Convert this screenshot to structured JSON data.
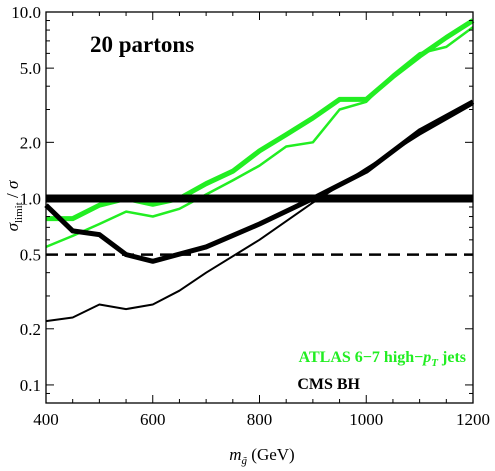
{
  "chart_data": {
    "type": "line",
    "title": "20 partons",
    "xlabel": "m_g̃ (GeV)",
    "ylabel": "σ_limit / σ",
    "xlim": [
      400,
      1200
    ],
    "ylim": [
      0.08,
      10.0
    ],
    "yscale": "log",
    "xticks": [
      400,
      600,
      800,
      1000,
      1200
    ],
    "xtick_labels": [
      "400",
      "600",
      "800",
      "1000",
      "1200"
    ],
    "yticks": [
      0.1,
      0.2,
      0.5,
      1.0,
      2.0,
      5.0,
      10.0
    ],
    "ytick_labels": [
      "0.1",
      "0.2",
      "0.5",
      "1.0",
      "2.0",
      "5.0",
      "10.0"
    ],
    "grid": false,
    "legend_entries": [
      {
        "label": "ATLAS 6−7 high−p_T jets",
        "color": "#22ee22"
      },
      {
        "label": "CMS BH",
        "color": "#000000"
      }
    ],
    "reference_lines": [
      {
        "y": 1.0,
        "style": "solid",
        "color": "#000000"
      },
      {
        "y": 0.5,
        "style": "dashed",
        "color": "#000000"
      }
    ],
    "series": [
      {
        "color": "#22ee22",
        "style": "thick",
        "x": [
          400,
          450,
          500,
          550,
          600,
          650,
          700,
          750,
          800,
          850,
          900,
          950,
          1000,
          1050,
          1100,
          1150,
          1200
        ],
        "y": [
          0.78,
          0.78,
          0.92,
          1.0,
          0.93,
          1.0,
          1.2,
          1.4,
          1.8,
          2.2,
          2.7,
          3.4,
          3.4,
          4.5,
          5.8,
          7.3,
          9.0
        ]
      },
      {
        "color": "#22ee22",
        "style": "thin",
        "x": [
          400,
          450,
          500,
          550,
          600,
          650,
          700,
          750,
          800,
          850,
          900,
          950,
          1000,
          1050,
          1100,
          1150,
          1200
        ],
        "y": [
          0.55,
          0.63,
          0.73,
          0.85,
          0.8,
          0.88,
          1.05,
          1.25,
          1.5,
          1.9,
          2.0,
          3.0,
          3.3,
          4.6,
          6.0,
          6.5,
          8.3
        ]
      },
      {
        "color": "#000000",
        "style": "thick",
        "x": [
          400,
          450,
          500,
          550,
          600,
          700,
          800,
          900,
          1000,
          1100,
          1200
        ],
        "y": [
          0.92,
          0.67,
          0.64,
          0.5,
          0.46,
          0.55,
          0.73,
          1.0,
          1.4,
          2.3,
          3.3
        ]
      },
      {
        "color": "#000000",
        "style": "thin",
        "x": [
          400,
          450,
          500,
          550,
          600,
          650,
          700,
          800,
          900,
          1000,
          1100,
          1200
        ],
        "y": [
          0.22,
          0.23,
          0.27,
          0.255,
          0.27,
          0.32,
          0.4,
          0.6,
          0.95,
          1.45,
          2.2,
          3.2
        ]
      }
    ]
  }
}
